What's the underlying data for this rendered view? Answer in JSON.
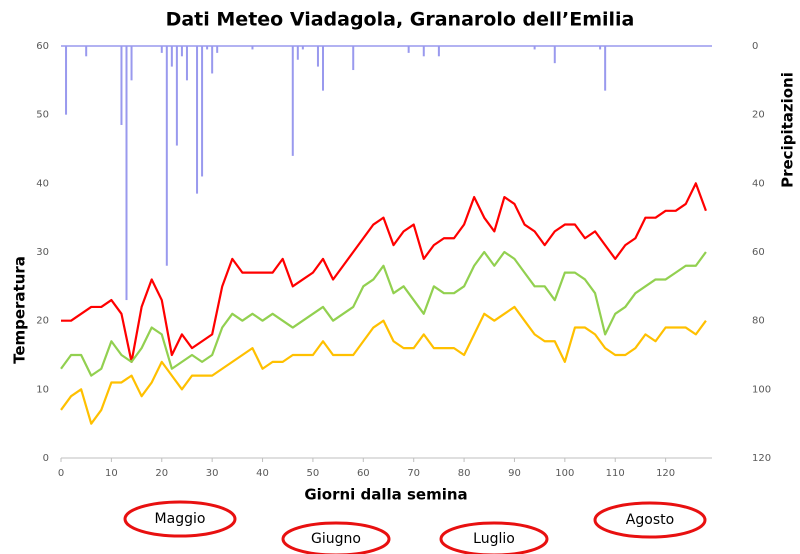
{
  "chart_data": {
    "type": "line",
    "title": "Dati Meteo Viadagola, Granarolo dell’Emilia",
    "xlabel": "Giorni dalla semina",
    "ylabel": "Temperatura",
    "y2label": "Precipitazioni",
    "x": [
      0,
      2,
      4,
      6,
      8,
      10,
      12,
      14,
      16,
      18,
      20,
      22,
      24,
      26,
      28,
      30,
      32,
      34,
      36,
      38,
      40,
      42,
      44,
      46,
      48,
      50,
      52,
      54,
      56,
      58,
      60,
      62,
      64,
      66,
      68,
      70,
      72,
      74,
      76,
      78,
      80,
      82,
      84,
      86,
      88,
      90,
      92,
      94,
      96,
      98,
      100,
      102,
      104,
      106,
      108,
      110,
      112,
      114,
      116,
      118,
      120,
      122,
      124,
      126,
      128
    ],
    "series": [
      {
        "color": "#ff0000",
        "values": [
          20,
          20,
          21,
          22,
          22,
          23,
          21,
          14,
          22,
          26,
          23,
          15,
          18,
          16,
          17,
          18,
          25,
          29,
          27,
          27,
          27,
          27,
          29,
          25,
          26,
          27,
          29,
          26,
          28,
          30,
          32,
          34,
          35,
          31,
          33,
          34,
          29,
          31,
          32,
          32,
          34,
          38,
          35,
          33,
          38,
          37,
          34,
          33,
          31,
          33,
          34,
          34,
          32,
          33,
          31,
          29,
          31,
          32,
          35,
          35,
          36,
          36,
          37,
          40,
          36
        ]
      },
      {
        "color": "#92d050",
        "values": [
          13,
          15,
          15,
          12,
          13,
          17,
          15,
          14,
          16,
          19,
          18,
          13,
          14,
          15,
          14,
          15,
          19,
          21,
          20,
          21,
          20,
          21,
          20,
          19,
          20,
          21,
          22,
          20,
          21,
          22,
          25,
          26,
          28,
          24,
          25,
          23,
          21,
          25,
          24,
          24,
          25,
          28,
          30,
          28,
          30,
          29,
          27,
          25,
          25,
          23,
          27,
          27,
          26,
          24,
          18,
          21,
          22,
          24,
          25,
          26,
          26,
          27,
          28,
          28,
          30
        ]
      },
      {
        "color": "#ffc000",
        "values": [
          7,
          9,
          10,
          5,
          7,
          11,
          11,
          12,
          9,
          11,
          14,
          12,
          10,
          12,
          12,
          12,
          13,
          14,
          15,
          16,
          13,
          14,
          14,
          15,
          15,
          15,
          17,
          15,
          15,
          15,
          17,
          19,
          20,
          17,
          16,
          16,
          18,
          16,
          16,
          16,
          15,
          18,
          21,
          20,
          21,
          22,
          20,
          18,
          17,
          17,
          14,
          19,
          19,
          18,
          16,
          15,
          15,
          16,
          18,
          17,
          19,
          19,
          19,
          18,
          20
        ]
      }
    ],
    "precipitation": {
      "type": "bar",
      "axis": "y2",
      "color": "#9999ee",
      "x": [
        1,
        5,
        12,
        13,
        14,
        20,
        21,
        22,
        23,
        24,
        25,
        27,
        28,
        29,
        30,
        31,
        38,
        46,
        47,
        48,
        51,
        52,
        58,
        69,
        72,
        75,
        94,
        98,
        107,
        108
      ],
      "values": [
        20,
        3,
        23,
        74,
        10,
        2,
        64,
        6,
        29,
        3,
        10,
        43,
        38,
        1,
        8,
        2,
        1,
        32,
        4,
        1,
        6,
        13,
        7,
        2,
        3,
        3,
        1,
        5,
        1,
        13
      ]
    },
    "xlim": [
      0,
      130
    ],
    "xticks": [
      0,
      10,
      20,
      30,
      40,
      50,
      60,
      70,
      80,
      90,
      100,
      110,
      120
    ],
    "ylim": [
      0,
      60
    ],
    "yticks": [
      0,
      10,
      20,
      30,
      40,
      50,
      60
    ],
    "y2lim": [
      0,
      120
    ],
    "y2ticks": [
      0,
      20,
      40,
      60,
      80,
      100,
      120
    ],
    "y2_reversed": true,
    "annotations": [
      "Maggio",
      "Giugno",
      "Luglio",
      "Agosto"
    ]
  }
}
